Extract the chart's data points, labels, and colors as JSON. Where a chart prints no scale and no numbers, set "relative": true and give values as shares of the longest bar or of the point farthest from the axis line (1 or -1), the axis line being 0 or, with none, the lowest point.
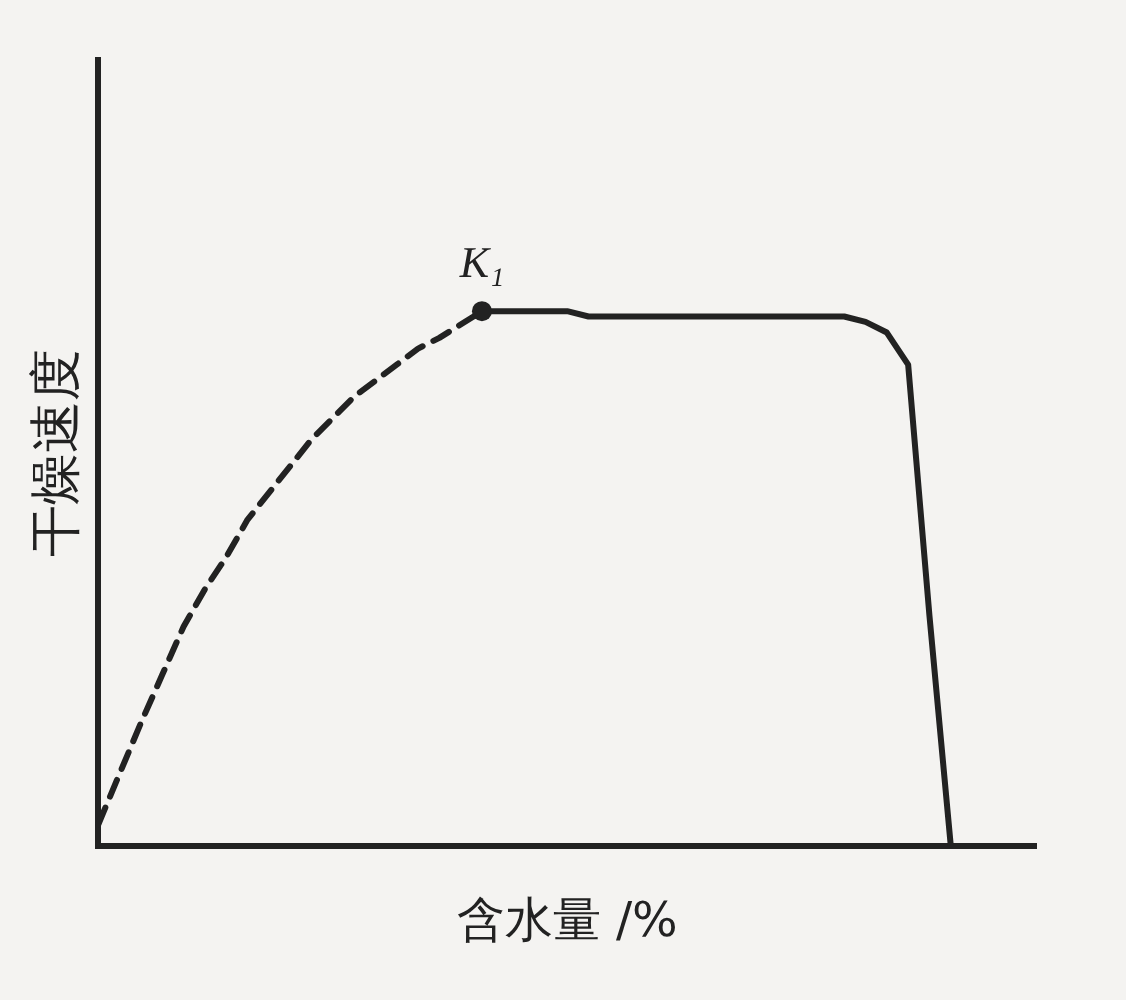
{
  "chart_data": {
    "type": "line",
    "relative": true,
    "xlabel": "含水量 /%",
    "ylabel": "干燥速度",
    "grid": false,
    "legend": false,
    "marker": "none",
    "categories": [
      null,
      null,
      null,
      null,
      null,
      null,
      null,
      null,
      null,
      null,
      null,
      null,
      null,
      null,
      null,
      null,
      null,
      null,
      null,
      null,
      null,
      null,
      null,
      null,
      null,
      null,
      null,
      null,
      null,
      null,
      null,
      null,
      null,
      null,
      null,
      null,
      null,
      null,
      null,
      null,
      null,
      null,
      null,
      null,
      null
    ],
    "series": [
      {
        "color": "#222222",
        "line_style": "dashed",
        "values": [
          0.04,
          0.135,
          0.23,
          0.32,
          0.41,
          0.48,
          0.54,
          0.61,
          0.66,
          0.71,
          0.76,
          0.8,
          0.84,
          0.87,
          0.9,
          0.93,
          0.95,
          0.975,
          1,
          null,
          null,
          null,
          null,
          null,
          null,
          null,
          null,
          null,
          null,
          null,
          null,
          null,
          null,
          null,
          null,
          null,
          null,
          null,
          null,
          null,
          null,
          null,
          null,
          null,
          null
        ]
      },
      {
        "color": "#222222",
        "line_style": "solid",
        "values": [
          null,
          null,
          null,
          null,
          null,
          null,
          null,
          null,
          null,
          null,
          null,
          null,
          null,
          null,
          null,
          null,
          null,
          null,
          1,
          1,
          1,
          1,
          1,
          0.99,
          0.99,
          0.99,
          0.99,
          0.99,
          0.99,
          0.99,
          0.99,
          0.99,
          0.99,
          0.99,
          0.99,
          0.99,
          0.98,
          0.96,
          0.9,
          0.43,
          0,
          null,
          null,
          null,
          null
        ]
      }
    ],
    "annotations": [
      {
        "text": "K₁",
        "y": 1
      }
    ]
  }
}
